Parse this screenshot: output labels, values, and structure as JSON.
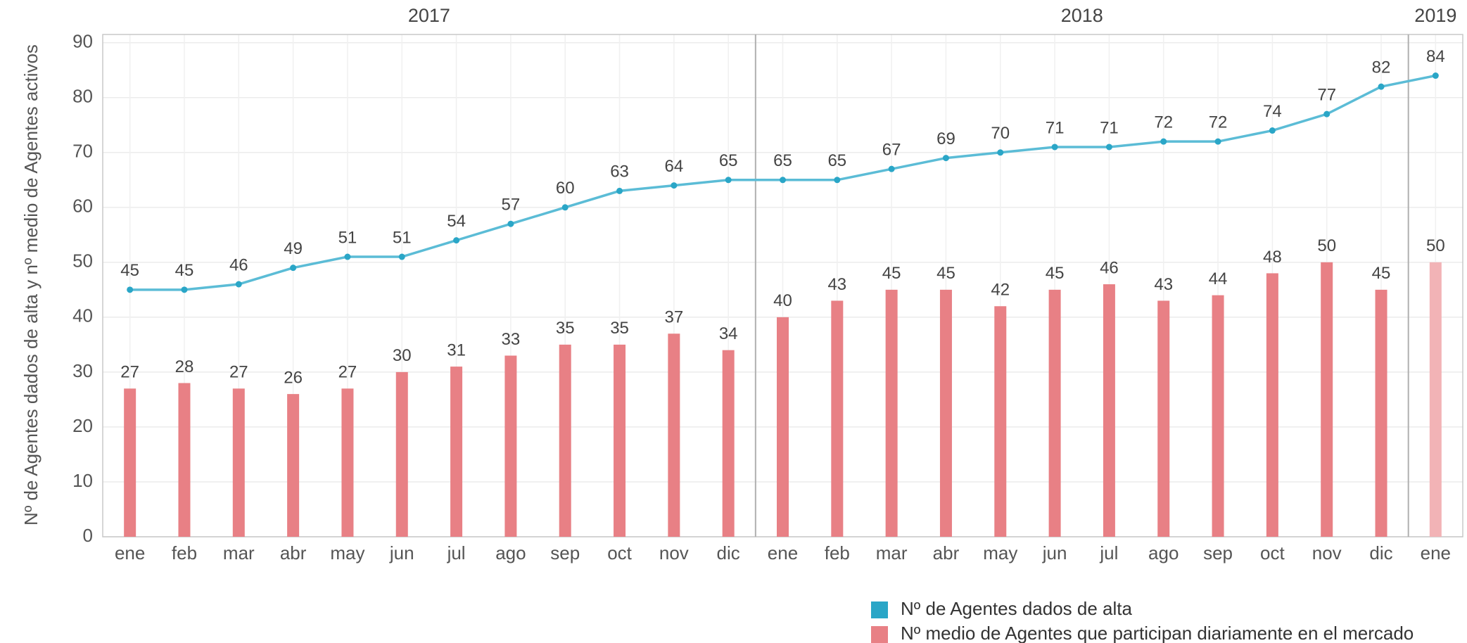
{
  "chart_data": {
    "type": "bar-line",
    "y_label": "Nº de Agentes dados de alta y nº medio de Agentes activos",
    "categories": [
      "ene",
      "feb",
      "mar",
      "abr",
      "may",
      "jun",
      "jul",
      "ago",
      "sep",
      "oct",
      "nov",
      "dic",
      "ene",
      "feb",
      "mar",
      "abr",
      "may",
      "jun",
      "jul",
      "ago",
      "sep",
      "oct",
      "nov",
      "dic",
      "ene"
    ],
    "x_groups": [
      {
        "label": "2017",
        "count": 12
      },
      {
        "label": "2018",
        "count": 12
      },
      {
        "label": "2019",
        "count": 1
      }
    ],
    "series": [
      {
        "name": "Nº de Agentes dados de alta",
        "type": "line",
        "color": "#5bbcd6",
        "legend_color": "#2aa6c7",
        "values": [
          45,
          45,
          46,
          49,
          51,
          51,
          54,
          57,
          60,
          63,
          64,
          65,
          65,
          65,
          67,
          69,
          70,
          71,
          71,
          72,
          72,
          74,
          77,
          82,
          84
        ]
      },
      {
        "name": "Nº medio de Agentes que participan diariamente en el mercado",
        "type": "bar",
        "color": "#e88085",
        "legend_color": "#e88085",
        "colors": [
          "#e88085",
          "#e88085",
          "#e88085",
          "#e88085",
          "#e88085",
          "#e88085",
          "#e88085",
          "#e88085",
          "#e88085",
          "#e88085",
          "#e88085",
          "#e88085",
          "#e88085",
          "#e88085",
          "#e88085",
          "#e88085",
          "#e88085",
          "#e88085",
          "#e88085",
          "#e88085",
          "#e88085",
          "#e88085",
          "#e88085",
          "#e88085",
          "#f2b3b6"
        ],
        "values": [
          27,
          28,
          27,
          26,
          27,
          30,
          31,
          33,
          35,
          35,
          37,
          34,
          40,
          43,
          45,
          45,
          42,
          45,
          46,
          43,
          44,
          48,
          50,
          45,
          50
        ]
      }
    ],
    "ylim": [
      0,
      91.5
    ],
    "yticks": [
      0,
      10,
      20,
      30,
      40,
      50,
      60,
      70,
      80,
      90
    ],
    "grid": true
  }
}
